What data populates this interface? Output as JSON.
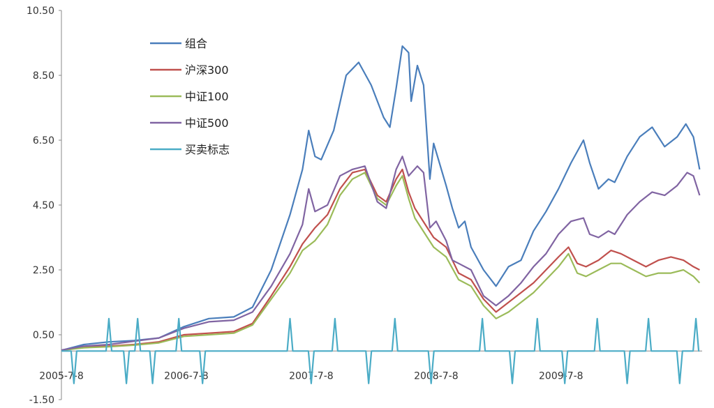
{
  "chart_data": {
    "type": "line",
    "title": "",
    "xlabel": "",
    "ylabel": "",
    "ylim": [
      -1.5,
      10.5
    ],
    "yticks": [
      "10.50",
      "8.50",
      "6.50",
      "4.50",
      "2.50",
      "0.50",
      "-1.50"
    ],
    "yticks_values": [
      10.5,
      8.5,
      6.5,
      4.5,
      2.5,
      0.5,
      -1.5
    ],
    "xticks": [
      {
        "label": "2005-7-8",
        "year": 2005.52
      },
      {
        "label": "2006-7-8",
        "year": 2006.52
      },
      {
        "label": "2007-7-8",
        "year": 2007.52
      },
      {
        "label": "2008-7-8",
        "year": 2008.52
      },
      {
        "label": "2009-7-8",
        "year": 2009.52
      }
    ],
    "x_unit": "year",
    "legend_position": "top-left",
    "series": [
      {
        "name": "组合",
        "color": "#4a7ebb",
        "points": [
          [
            2005.52,
            0.02
          ],
          [
            2005.7,
            0.2
          ],
          [
            2005.9,
            0.28
          ],
          [
            2006.1,
            0.32
          ],
          [
            2006.3,
            0.4
          ],
          [
            2006.5,
            0.75
          ],
          [
            2006.7,
            1.0
          ],
          [
            2006.9,
            1.05
          ],
          [
            2007.05,
            1.35
          ],
          [
            2007.2,
            2.5
          ],
          [
            2007.35,
            4.2
          ],
          [
            2007.45,
            5.6
          ],
          [
            2007.5,
            6.8
          ],
          [
            2007.55,
            6.0
          ],
          [
            2007.6,
            5.9
          ],
          [
            2007.7,
            6.8
          ],
          [
            2007.8,
            8.5
          ],
          [
            2007.9,
            8.9
          ],
          [
            2008.0,
            8.2
          ],
          [
            2008.1,
            7.2
          ],
          [
            2008.15,
            6.9
          ],
          [
            2008.2,
            8.1
          ],
          [
            2008.25,
            9.4
          ],
          [
            2008.3,
            9.2
          ],
          [
            2008.32,
            7.7
          ],
          [
            2008.37,
            8.8
          ],
          [
            2008.42,
            8.2
          ],
          [
            2008.47,
            5.3
          ],
          [
            2008.5,
            6.4
          ],
          [
            2008.6,
            5.1
          ],
          [
            2008.65,
            4.4
          ],
          [
            2008.7,
            3.8
          ],
          [
            2008.75,
            4.0
          ],
          [
            2008.8,
            3.2
          ],
          [
            2008.9,
            2.5
          ],
          [
            2009.0,
            2.0
          ],
          [
            2009.1,
            2.6
          ],
          [
            2009.2,
            2.8
          ],
          [
            2009.3,
            3.7
          ],
          [
            2009.4,
            4.3
          ],
          [
            2009.5,
            5.0
          ],
          [
            2009.6,
            5.8
          ],
          [
            2009.7,
            6.5
          ],
          [
            2009.75,
            5.8
          ],
          [
            2009.82,
            5.0
          ],
          [
            2009.9,
            5.3
          ],
          [
            2009.95,
            5.2
          ],
          [
            2010.05,
            6.0
          ],
          [
            2010.15,
            6.6
          ],
          [
            2010.25,
            6.9
          ],
          [
            2010.35,
            6.3
          ],
          [
            2010.45,
            6.6
          ],
          [
            2010.52,
            7.0
          ],
          [
            2010.58,
            6.6
          ],
          [
            2010.63,
            5.6
          ]
        ]
      },
      {
        "name": "沪深300",
        "color": "#c0504d",
        "points": [
          [
            2005.52,
            0.02
          ],
          [
            2005.7,
            0.12
          ],
          [
            2005.9,
            0.15
          ],
          [
            2006.1,
            0.2
          ],
          [
            2006.3,
            0.28
          ],
          [
            2006.5,
            0.5
          ],
          [
            2006.7,
            0.55
          ],
          [
            2006.9,
            0.6
          ],
          [
            2007.05,
            0.85
          ],
          [
            2007.2,
            1.7
          ],
          [
            2007.35,
            2.6
          ],
          [
            2007.45,
            3.3
          ],
          [
            2007.55,
            3.8
          ],
          [
            2007.65,
            4.2
          ],
          [
            2007.75,
            5.0
          ],
          [
            2007.85,
            5.5
          ],
          [
            2007.95,
            5.6
          ],
          [
            2008.05,
            4.8
          ],
          [
            2008.12,
            4.6
          ],
          [
            2008.2,
            5.3
          ],
          [
            2008.25,
            5.6
          ],
          [
            2008.3,
            4.9
          ],
          [
            2008.35,
            4.4
          ],
          [
            2008.45,
            3.8
          ],
          [
            2008.5,
            3.5
          ],
          [
            2008.6,
            3.2
          ],
          [
            2008.7,
            2.4
          ],
          [
            2008.8,
            2.2
          ],
          [
            2008.9,
            1.6
          ],
          [
            2009.0,
            1.2
          ],
          [
            2009.1,
            1.5
          ],
          [
            2009.2,
            1.8
          ],
          [
            2009.3,
            2.1
          ],
          [
            2009.4,
            2.5
          ],
          [
            2009.5,
            2.9
          ],
          [
            2009.58,
            3.2
          ],
          [
            2009.65,
            2.7
          ],
          [
            2009.72,
            2.6
          ],
          [
            2009.82,
            2.8
          ],
          [
            2009.92,
            3.1
          ],
          [
            2010.0,
            3.0
          ],
          [
            2010.1,
            2.8
          ],
          [
            2010.2,
            2.6
          ],
          [
            2010.3,
            2.8
          ],
          [
            2010.4,
            2.9
          ],
          [
            2010.5,
            2.8
          ],
          [
            2010.58,
            2.6
          ],
          [
            2010.63,
            2.5
          ]
        ]
      },
      {
        "name": "中证100",
        "color": "#9bbb59",
        "points": [
          [
            2005.52,
            0.02
          ],
          [
            2005.7,
            0.1
          ],
          [
            2005.9,
            0.13
          ],
          [
            2006.1,
            0.18
          ],
          [
            2006.3,
            0.25
          ],
          [
            2006.5,
            0.45
          ],
          [
            2006.7,
            0.5
          ],
          [
            2006.9,
            0.55
          ],
          [
            2007.05,
            0.8
          ],
          [
            2007.2,
            1.6
          ],
          [
            2007.35,
            2.4
          ],
          [
            2007.45,
            3.1
          ],
          [
            2007.55,
            3.4
          ],
          [
            2007.65,
            3.9
          ],
          [
            2007.75,
            4.8
          ],
          [
            2007.85,
            5.3
          ],
          [
            2007.95,
            5.5
          ],
          [
            2008.05,
            4.7
          ],
          [
            2008.12,
            4.5
          ],
          [
            2008.2,
            5.1
          ],
          [
            2008.25,
            5.4
          ],
          [
            2008.3,
            4.7
          ],
          [
            2008.35,
            4.1
          ],
          [
            2008.45,
            3.5
          ],
          [
            2008.5,
            3.2
          ],
          [
            2008.6,
            2.9
          ],
          [
            2008.7,
            2.2
          ],
          [
            2008.8,
            2.0
          ],
          [
            2008.9,
            1.4
          ],
          [
            2009.0,
            1.0
          ],
          [
            2009.1,
            1.2
          ],
          [
            2009.2,
            1.5
          ],
          [
            2009.3,
            1.8
          ],
          [
            2009.4,
            2.2
          ],
          [
            2009.5,
            2.6
          ],
          [
            2009.58,
            3.0
          ],
          [
            2009.65,
            2.4
          ],
          [
            2009.72,
            2.3
          ],
          [
            2009.82,
            2.5
          ],
          [
            2009.92,
            2.7
          ],
          [
            2010.0,
            2.7
          ],
          [
            2010.1,
            2.5
          ],
          [
            2010.2,
            2.3
          ],
          [
            2010.3,
            2.4
          ],
          [
            2010.4,
            2.4
          ],
          [
            2010.5,
            2.5
          ],
          [
            2010.58,
            2.3
          ],
          [
            2010.63,
            2.1
          ]
        ]
      },
      {
        "name": "中证500",
        "color": "#8064a2",
        "points": [
          [
            2005.52,
            0.03
          ],
          [
            2005.7,
            0.15
          ],
          [
            2005.9,
            0.2
          ],
          [
            2006.1,
            0.3
          ],
          [
            2006.3,
            0.4
          ],
          [
            2006.5,
            0.7
          ],
          [
            2006.7,
            0.9
          ],
          [
            2006.9,
            0.95
          ],
          [
            2007.05,
            1.2
          ],
          [
            2007.2,
            2.0
          ],
          [
            2007.35,
            3.0
          ],
          [
            2007.45,
            3.9
          ],
          [
            2007.5,
            5.0
          ],
          [
            2007.55,
            4.3
          ],
          [
            2007.65,
            4.5
          ],
          [
            2007.75,
            5.4
          ],
          [
            2007.85,
            5.6
          ],
          [
            2007.95,
            5.7
          ],
          [
            2008.05,
            4.6
          ],
          [
            2008.12,
            4.4
          ],
          [
            2008.2,
            5.6
          ],
          [
            2008.25,
            6.0
          ],
          [
            2008.3,
            5.4
          ],
          [
            2008.37,
            5.7
          ],
          [
            2008.42,
            5.5
          ],
          [
            2008.47,
            3.8
          ],
          [
            2008.52,
            4.0
          ],
          [
            2008.6,
            3.4
          ],
          [
            2008.65,
            2.8
          ],
          [
            2008.7,
            2.7
          ],
          [
            2008.8,
            2.5
          ],
          [
            2008.9,
            1.7
          ],
          [
            2009.0,
            1.4
          ],
          [
            2009.1,
            1.7
          ],
          [
            2009.2,
            2.1
          ],
          [
            2009.3,
            2.6
          ],
          [
            2009.4,
            3.0
          ],
          [
            2009.5,
            3.6
          ],
          [
            2009.6,
            4.0
          ],
          [
            2009.7,
            4.1
          ],
          [
            2009.75,
            3.6
          ],
          [
            2009.82,
            3.5
          ],
          [
            2009.9,
            3.7
          ],
          [
            2009.95,
            3.6
          ],
          [
            2010.05,
            4.2
          ],
          [
            2010.15,
            4.6
          ],
          [
            2010.25,
            4.9
          ],
          [
            2010.35,
            4.8
          ],
          [
            2010.45,
            5.1
          ],
          [
            2010.53,
            5.5
          ],
          [
            2010.58,
            5.4
          ],
          [
            2010.63,
            4.8
          ]
        ]
      },
      {
        "name": "买卖标志",
        "color": "#4bacc6",
        "baseline": 0,
        "spikes": [
          {
            "x": 2005.62,
            "y": -1
          },
          {
            "x": 2005.9,
            "y": 1
          },
          {
            "x": 2006.04,
            "y": -1
          },
          {
            "x": 2006.13,
            "y": 1
          },
          {
            "x": 2006.25,
            "y": -1
          },
          {
            "x": 2006.46,
            "y": 1
          },
          {
            "x": 2006.65,
            "y": -1
          },
          {
            "x": 2007.35,
            "y": 1
          },
          {
            "x": 2007.52,
            "y": -1
          },
          {
            "x": 2007.71,
            "y": 1
          },
          {
            "x": 2007.98,
            "y": -1
          },
          {
            "x": 2008.19,
            "y": 1
          },
          {
            "x": 2008.48,
            "y": -1
          },
          {
            "x": 2008.89,
            "y": 1
          },
          {
            "x": 2009.13,
            "y": -1
          },
          {
            "x": 2009.33,
            "y": 1
          },
          {
            "x": 2009.55,
            "y": -1
          },
          {
            "x": 2009.81,
            "y": 1
          },
          {
            "x": 2010.05,
            "y": -1
          },
          {
            "x": 2010.22,
            "y": 1
          },
          {
            "x": 2010.47,
            "y": -1
          },
          {
            "x": 2010.6,
            "y": 1
          }
        ]
      }
    ]
  }
}
